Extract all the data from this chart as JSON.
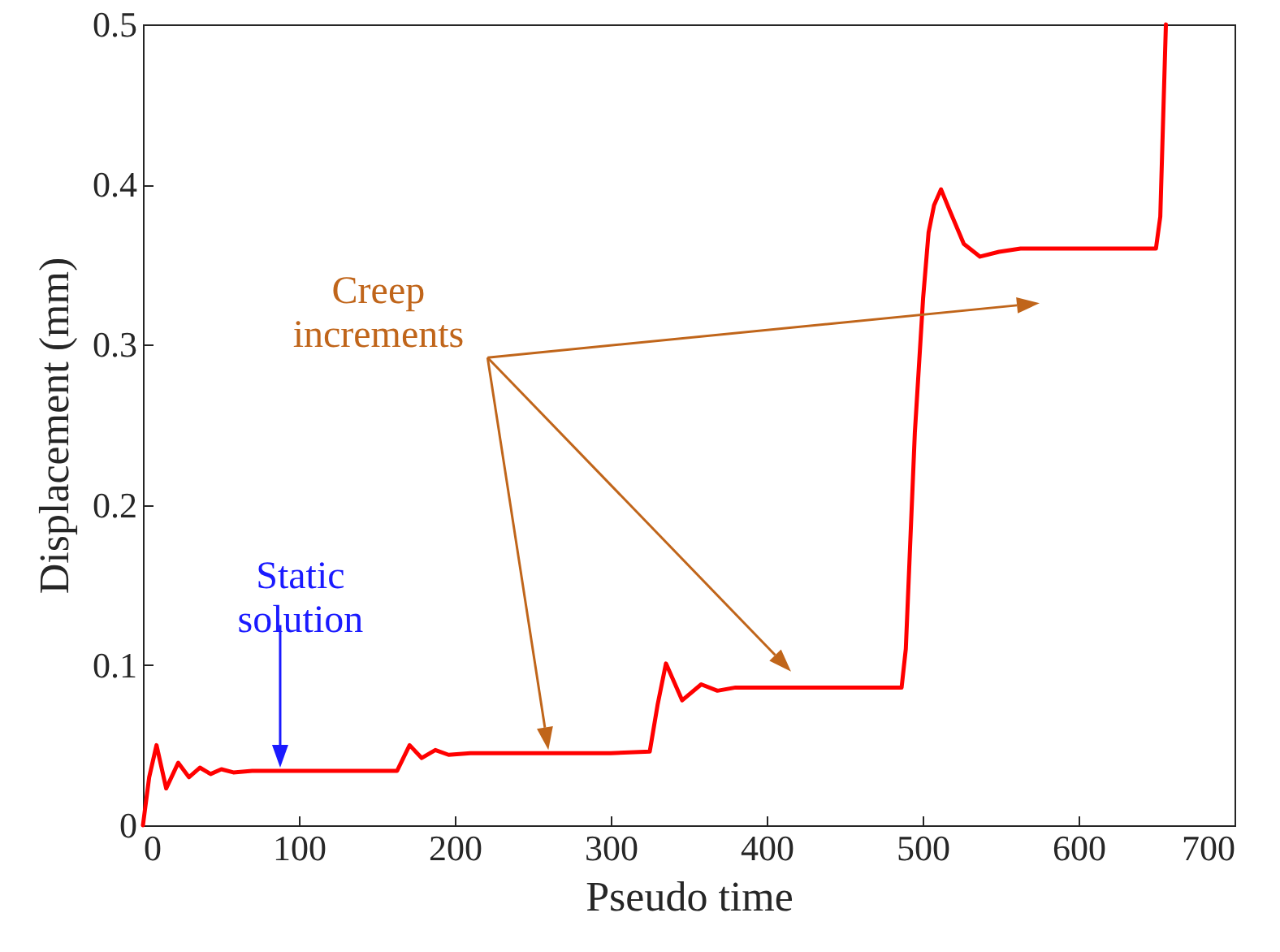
{
  "chart_data": {
    "type": "line",
    "xlabel": "Pseudo time",
    "ylabel": "Displacement (mm)",
    "xlim": [
      0,
      700
    ],
    "xticks": [
      0,
      100,
      200,
      300,
      400,
      500,
      600,
      700
    ],
    "ylim": [
      0,
      0.5
    ],
    "yticks": [
      0,
      0.1,
      0.2,
      0.3,
      0.4,
      0.5
    ],
    "grid": false,
    "marker": "none",
    "line_style": "solid",
    "annotations": [
      "Static solution",
      "Creep increments"
    ],
    "x": [
      0,
      4,
      8.7,
      14.9,
      22.6,
      29.5,
      36.5,
      43.4,
      50.3,
      58,
      70,
      100,
      163,
      167,
      171,
      178.8,
      187.5,
      196,
      210,
      250,
      300,
      325,
      330,
      335.4,
      345.8,
      358,
      368.4,
      380,
      420,
      486.5,
      489.2,
      495,
      500.3,
      503.8,
      507.3,
      511.8,
      517.7,
      526.4,
      536.8,
      549,
      562.8,
      600,
      649.6,
      652.4,
      656
    ],
    "series": [
      {
        "color": "#ff0000",
        "values": [
          0,
          0.03,
          0.05,
          0.023,
          0.039,
          0.03,
          0.036,
          0.032,
          0.035,
          0.033,
          0.034,
          0.034,
          0.034,
          0.042,
          0.05,
          0.042,
          0.047,
          0.044,
          0.045,
          0.045,
          0.045,
          0.046,
          0.075,
          0.101,
          0.078,
          0.088,
          0.084,
          0.086,
          0.086,
          0.086,
          0.11,
          0.245,
          0.329,
          0.37,
          0.387,
          0.397,
          0.383,
          0.363,
          0.355,
          0.358,
          0.36,
          0.36,
          0.36,
          0.38,
          0.5
        ]
      }
    ]
  }
}
